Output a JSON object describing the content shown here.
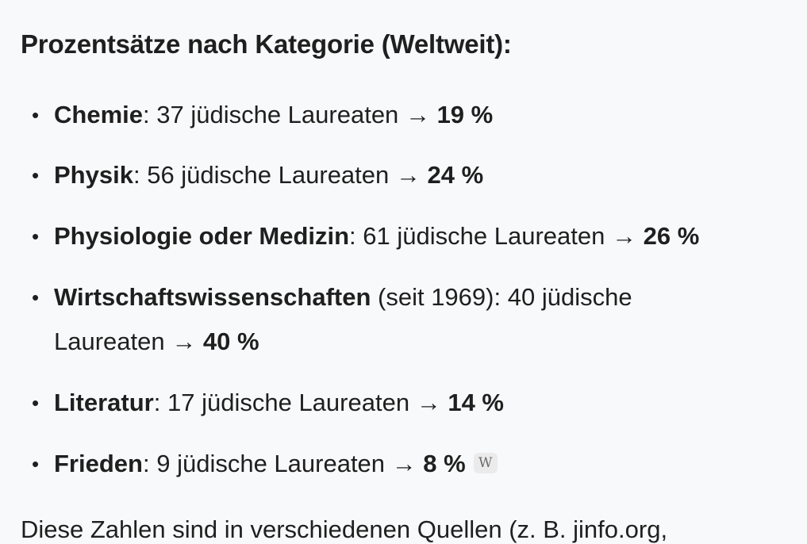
{
  "heading": "Prozentsätze nach Kategorie (Weltweit):",
  "items": [
    {
      "category": "Chemie",
      "qualifier": "",
      "detail": "37 jüdische Laureaten",
      "arrow": "→",
      "percent": "19 %"
    },
    {
      "category": "Physik",
      "qualifier": "",
      "detail": "56 jüdische Laureaten",
      "arrow": "→",
      "percent": "24 %"
    },
    {
      "category": "Physiologie oder Medizin",
      "qualifier": "",
      "detail": "61 jüdische Laureaten",
      "arrow": "→",
      "percent": "26 %"
    },
    {
      "category": "Wirtschaftswissenschaften",
      "qualifier": " (seit 1969)",
      "detail_line1": "40 jüdische",
      "detail_line2": "Laureaten",
      "arrow": "→",
      "percent": "40 %"
    },
    {
      "category": "Literatur",
      "qualifier": "",
      "detail": "17 jüdische Laureaten",
      "arrow": "→",
      "percent": "14 %"
    },
    {
      "category": "Frieden",
      "qualifier": "",
      "detail": "9 jüdische Laureaten",
      "arrow": "→",
      "percent": "8 %",
      "citation": "W"
    }
  ],
  "bullet": "•",
  "colon": ":",
  "footer_text": "Diese Zahlen sind in verschiedenen Quellen (z. B. jinfo.org,"
}
